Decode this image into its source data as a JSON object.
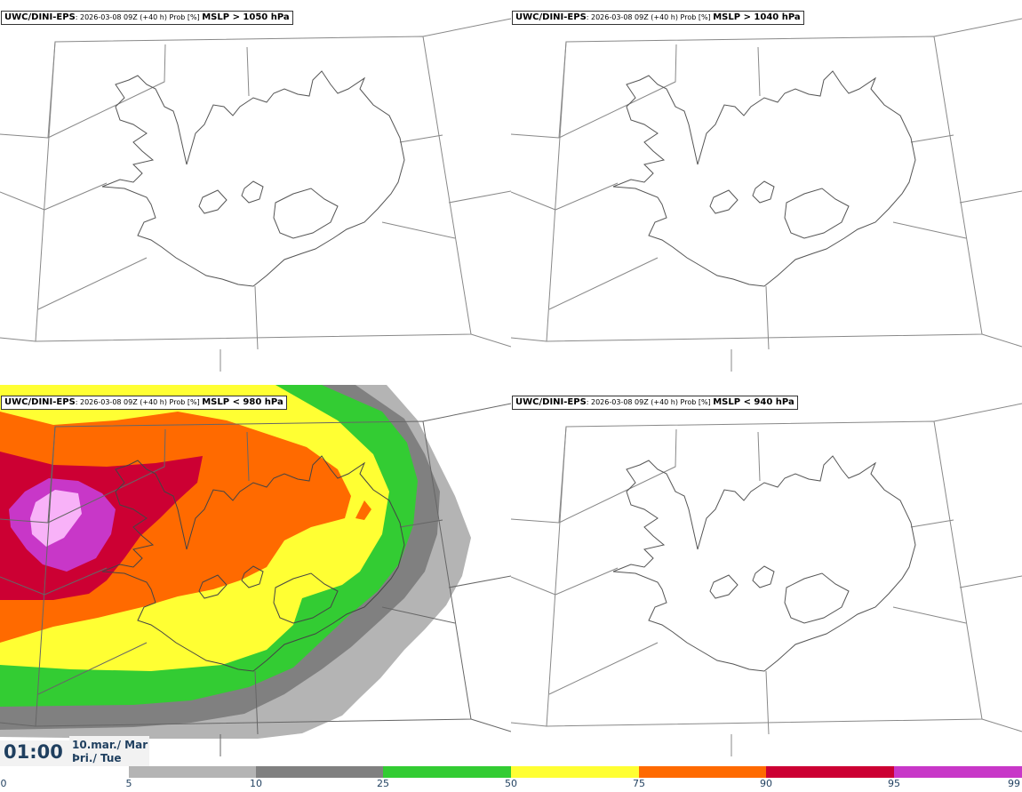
{
  "panels": [
    {
      "model": "UWC/DINI-EPS",
      "run": ": 2026-03-08 09Z (+40 h) Prob [%] ",
      "threshold": "MSLP > 1050 hPa"
    },
    {
      "model": "UWC/DINI-EPS",
      "run": ": 2026-03-08 09Z (+40 h) Prob [%] ",
      "threshold": "MSLP > 1040 hPa"
    },
    {
      "model": "UWC/DINI-EPS",
      "run": ": 2026-03-08 09Z (+40 h) Prob [%] ",
      "threshold": "MSLP < 980 hPa"
    },
    {
      "model": "UWC/DINI-EPS",
      "run": ": 2026-03-08 09Z (+40 h) Prob [%] ",
      "threshold": "MSLP < 940 hPa"
    }
  ],
  "valid_time": {
    "clock": "01:00",
    "date_line1": "10.mar./ Mar",
    "date_line2": "Þri./ Tue"
  },
  "legend": {
    "ticks": [
      "0",
      "5",
      "10",
      "25",
      "50",
      "75",
      "90",
      "95",
      "99"
    ],
    "colors": [
      "#b4b4b4",
      "#808080",
      "#33cc33",
      "#ffff33",
      "#ff6a00",
      "#cc0033",
      "#c837c8",
      "#f8b2f8"
    ]
  }
}
